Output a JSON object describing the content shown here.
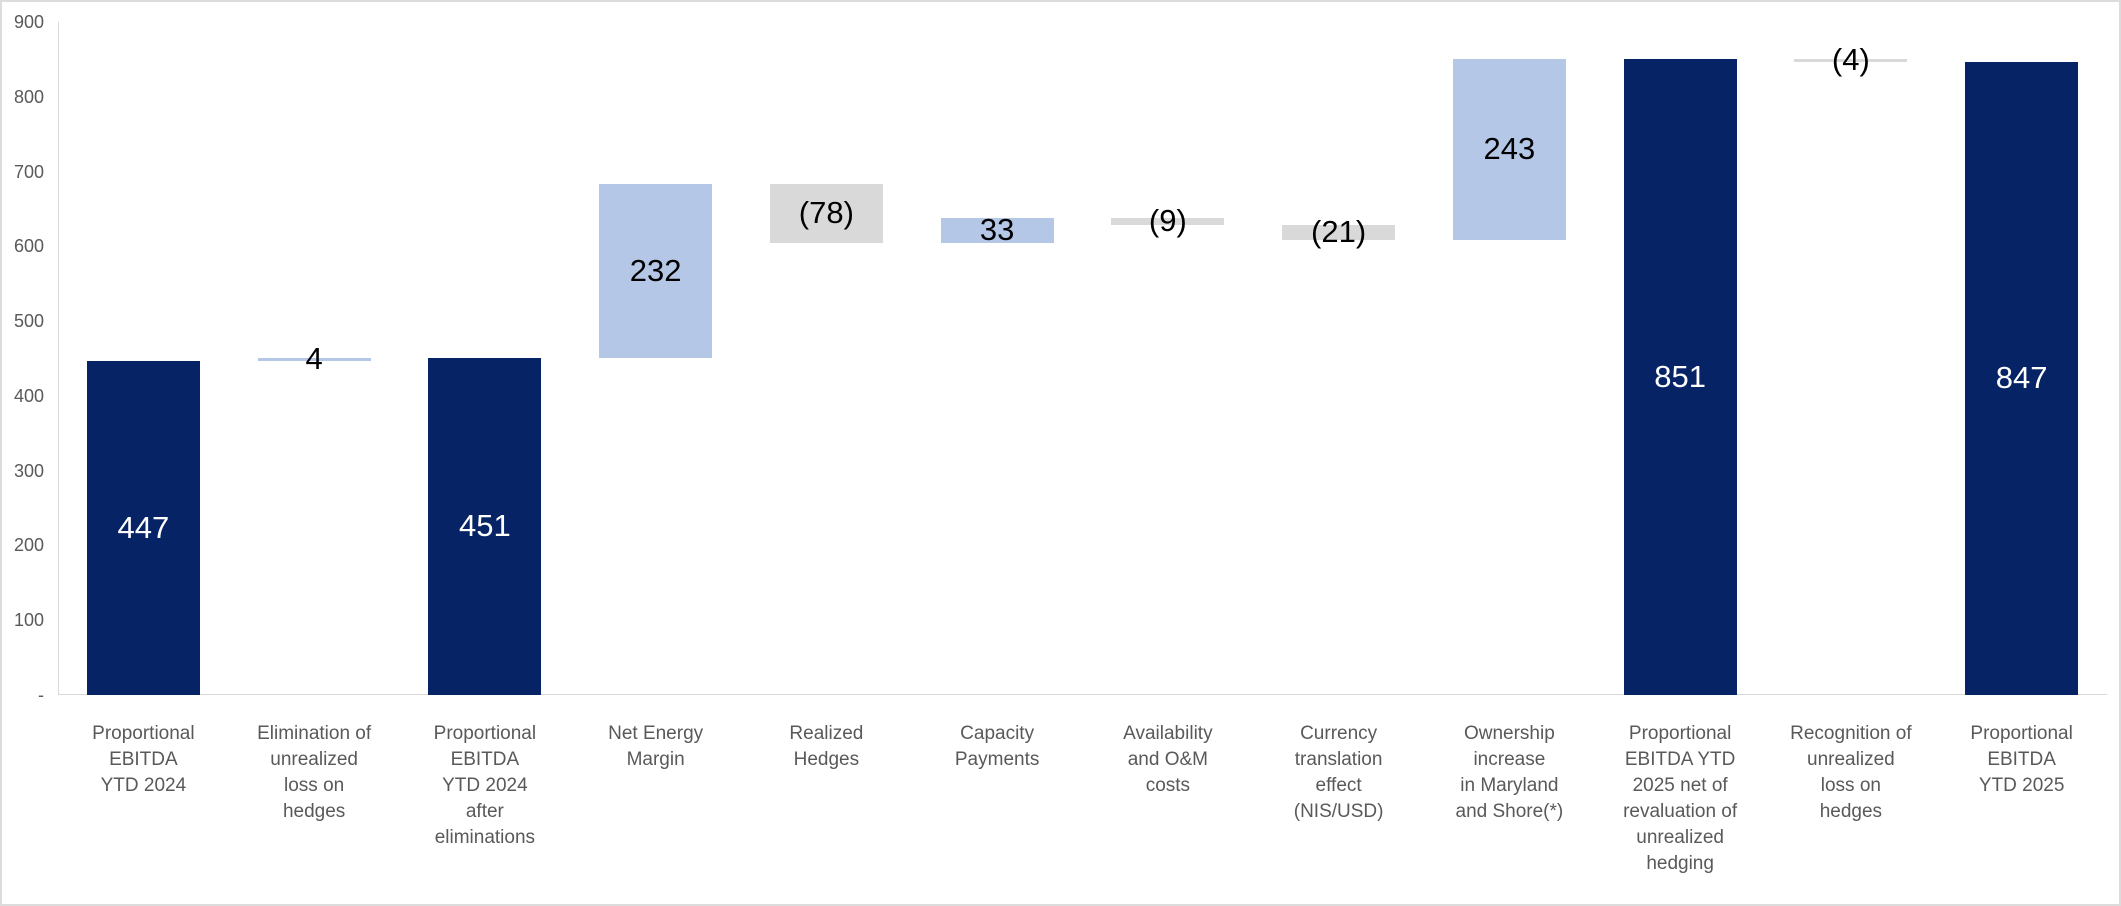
{
  "chart_data": {
    "type": "waterfall",
    "title": "",
    "xlabel": "",
    "ylabel": "",
    "ylim": [
      0,
      900
    ],
    "grid": false,
    "legend": false,
    "yticks": [
      {
        "value": 900,
        "label": "900"
      },
      {
        "value": 800,
        "label": "800"
      },
      {
        "value": 700,
        "label": "700"
      },
      {
        "value": 600,
        "label": "600"
      },
      {
        "value": 500,
        "label": "500"
      },
      {
        "value": 400,
        "label": "400"
      },
      {
        "value": 300,
        "label": "300"
      },
      {
        "value": 200,
        "label": "200"
      },
      {
        "value": 100,
        "label": "100"
      },
      {
        "value": 0,
        "label": "-"
      }
    ],
    "colors": {
      "total": "#062366",
      "increase": "#b4c7e7",
      "decrease": "#d9d9d9",
      "axis_line": "#d9d9d9",
      "tick_text": "#595959",
      "category_text": "#595959",
      "value_text_on_total": "#ffffff",
      "value_text_default": "#000000"
    },
    "bars": [
      {
        "category": "Proportional\nEBITDA\nYTD 2024",
        "kind": "total",
        "base": 0,
        "top": 447,
        "value": 447,
        "value_label": "447"
      },
      {
        "category": "Elimination of\nunrealized\nloss on\nhedges",
        "kind": "increase",
        "base": 447,
        "top": 451,
        "value": 4,
        "value_label": "4"
      },
      {
        "category": "Proportional\nEBITDA\nYTD 2024\nafter\neliminations",
        "kind": "total",
        "base": 0,
        "top": 451,
        "value": 451,
        "value_label": "451"
      },
      {
        "category": "Net Energy\nMargin",
        "kind": "increase",
        "base": 451,
        "top": 683,
        "value": 232,
        "value_label": "232"
      },
      {
        "category": "Realized\nHedges",
        "kind": "decrease",
        "base": 605,
        "top": 683,
        "value": -78,
        "value_label": "(78)"
      },
      {
        "category": "Capacity\nPayments",
        "kind": "increase",
        "base": 605,
        "top": 638,
        "value": 33,
        "value_label": "33"
      },
      {
        "category": "Availability\nand O&M\ncosts",
        "kind": "decrease",
        "base": 629,
        "top": 638,
        "value": -9,
        "value_label": "(9)"
      },
      {
        "category": "Currency\ntranslation\neffect\n(NIS/USD)",
        "kind": "decrease",
        "base": 608,
        "top": 629,
        "value": -21,
        "value_label": "(21)"
      },
      {
        "category": "Ownership\nincrease\nin Maryland\nand Shore(*)",
        "kind": "increase",
        "base": 608,
        "top": 851,
        "value": 243,
        "value_label": "243"
      },
      {
        "category": "Proportional\nEBITDA YTD\n2025 net of\nrevaluation of\nunrealized\nhedging",
        "kind": "total",
        "base": 0,
        "top": 851,
        "value": 851,
        "value_label": "851"
      },
      {
        "category": "Recognition of\nunrealized\nloss on\nhedges",
        "kind": "decrease",
        "base": 847,
        "top": 851,
        "value": -4,
        "value_label": "(4)"
      },
      {
        "category": "Proportional\nEBITDA\nYTD 2025",
        "kind": "total",
        "base": 0,
        "top": 847,
        "value": 847,
        "value_label": "847"
      }
    ]
  }
}
